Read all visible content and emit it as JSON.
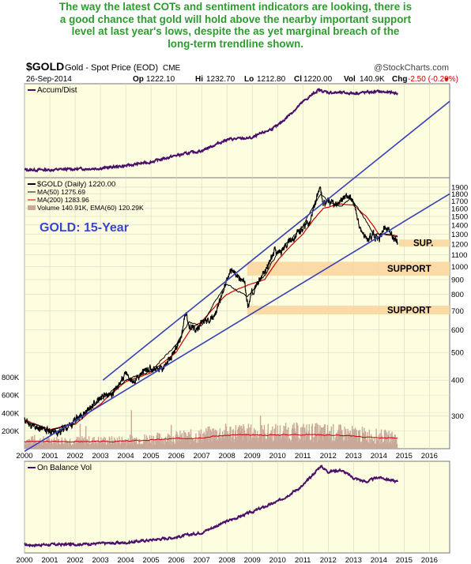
{
  "headline": [
    "The way the latest COTs and sentiment indicators are looking, there is",
    "a good chance that gold will hold above the nearby important support",
    "level at last year's lows, despite the as yet marginal breach of the",
    "long-term trendline shown."
  ],
  "header": {
    "symbol": "$GOLD",
    "name": "Gold - Spot Price (EOD)",
    "exchange": "CME",
    "date": "26-Sep-2014",
    "copyright": "@StockCharts.com",
    "quote": [
      {
        "label": "Op",
        "value": "1222.10"
      },
      {
        "label": "Hi",
        "value": "1232.70"
      },
      {
        "label": "Lo",
        "value": "1212.80"
      },
      {
        "label": "Cl",
        "value": "1220.00"
      },
      {
        "label": "Vol",
        "value": "140.9K"
      },
      {
        "label": "Chg",
        "value": "-2.50 (-0.20%)"
      }
    ]
  },
  "colors": {
    "background": "#fdfde0",
    "price": "#000000",
    "ma50": "#000000",
    "ma200": "#cc0000",
    "indicator": "#4b0f6b",
    "trendline": "#3840b8",
    "support_band": "#fad7a0",
    "volume": "#c9a89a",
    "volume_ema": "#cc0000",
    "headline": "#2e9b2e",
    "annotation": "#3c46c8"
  },
  "annotation_title": "GOLD: 15-Year",
  "chart_data": [
    {
      "type": "line",
      "title": "Accum/Dist",
      "x": [
        2000,
        2001,
        2002,
        2003,
        2004,
        2005,
        2006,
        2007,
        2008,
        2009,
        2010,
        2011,
        2011.6,
        2012,
        2013,
        2014,
        2014.74
      ],
      "values": [
        0,
        0,
        0.01,
        0.02,
        0.05,
        0.1,
        0.18,
        0.24,
        0.38,
        0.4,
        0.55,
        0.85,
        1,
        0.97,
        0.96,
        0.98,
        0.96
      ]
    },
    {
      "type": "line",
      "title": "$GOLD (Daily) 1220.00",
      "xlim": [
        2000,
        2016.8
      ],
      "ylim": [
        230,
        2050
      ],
      "yscale": "log",
      "yticks": [
        300,
        400,
        500,
        600,
        700,
        800,
        900,
        1000,
        1100,
        1200,
        1300,
        1400,
        1500,
        1600,
        1700,
        1800,
        1900
      ],
      "xticks": [
        "2000",
        "2001",
        "2002",
        "2003",
        "2004",
        "2005",
        "2006",
        "2007",
        "2008",
        "2009",
        "2010",
        "2011",
        "2012",
        "2013",
        "2014",
        "2015",
        "2016"
      ],
      "vol_ticks": [
        "200K",
        "400K",
        "600K",
        "800K"
      ],
      "legend": [
        "$GOLD (Daily) 1220.00",
        "MA(50) 1275.69",
        "MA(200) 1283.96",
        "Volume 140.91K, EMA(60) 120.29K"
      ],
      "price": {
        "x": [
          2000,
          2000.3,
          2000.7,
          2001,
          2001.3,
          2001.8,
          2002,
          2002.5,
          2003,
          2003.5,
          2004,
          2004.3,
          2004.7,
          2005,
          2005.5,
          2005.9,
          2006.2,
          2006.37,
          2006.5,
          2006.8,
          2007,
          2007.5,
          2007.8,
          2008.0,
          2008.2,
          2008.5,
          2008.7,
          2008.83,
          2009,
          2009.3,
          2009.5,
          2009.9,
          2010,
          2010.5,
          2011,
          2011.3,
          2011.67,
          2011.8,
          2012,
          2012.3,
          2012.7,
          2013,
          2013.25,
          2013.5,
          2013.8,
          2014,
          2014.2,
          2014.5,
          2014.74
        ],
        "values": [
          290,
          275,
          270,
          265,
          262,
          278,
          290,
          315,
          345,
          360,
          420,
          390,
          430,
          440,
          440,
          500,
          560,
          700,
          620,
          600,
          640,
          660,
          800,
          900,
          980,
          900,
          880,
          720,
          820,
          900,
          950,
          1150,
          1110,
          1230,
          1370,
          1440,
          1890,
          1650,
          1700,
          1650,
          1780,
          1680,
          1350,
          1250,
          1300,
          1230,
          1380,
          1300,
          1220
        ]
      },
      "ma50": {
        "x": [
          2000,
          2001,
          2002,
          2003,
          2004,
          2005,
          2006,
          2006.5,
          2007,
          2008,
          2008.8,
          2009.5,
          2010,
          2011,
          2011.7,
          2012,
          2012.5,
          2012.9,
          2013.3,
          2013.8,
          2014.3,
          2014.74
        ],
        "values": [
          288,
          266,
          285,
          340,
          400,
          430,
          530,
          640,
          620,
          870,
          780,
          930,
          1110,
          1380,
          1800,
          1690,
          1620,
          1740,
          1540,
          1300,
          1300,
          1275.69
        ]
      },
      "ma200": {
        "x": [
          2000,
          2001,
          2002,
          2003,
          2004,
          2005,
          2006,
          2006.6,
          2007,
          2008,
          2008.8,
          2009.5,
          2010,
          2011,
          2011.8,
          2012.5,
          2013,
          2013.5,
          2014,
          2014.74
        ],
        "values": [
          290,
          268,
          280,
          330,
          395,
          425,
          500,
          610,
          640,
          800,
          860,
          900,
          1050,
          1300,
          1600,
          1660,
          1640,
          1500,
          1300,
          1283.96
        ]
      },
      "trendlines": [
        {
          "x": [
            2003.1,
            2016.8
          ],
          "y": [
            400,
            3800
          ]
        },
        {
          "x": [
            2000,
            2016.8
          ],
          "y": [
            225,
            1800
          ]
        }
      ],
      "support_bands": [
        {
          "from": 1175,
          "to": 1245,
          "label": "SUP."
        },
        {
          "from": 930,
          "to": 1040,
          "label": "SUPPORT"
        },
        {
          "from": 680,
          "to": 730,
          "label": "SUPPORT"
        }
      ],
      "volume": {
        "x": [
          2000,
          2003.5,
          2004.5,
          2005.5,
          2006.5,
          2007,
          2007.5,
          2008,
          2008.5,
          2009,
          2010,
          2011,
          2012,
          2013,
          2014,
          2014.74
        ],
        "values": [
          80,
          80,
          95,
          105,
          120,
          130,
          150,
          160,
          165,
          155,
          160,
          165,
          160,
          145,
          125,
          110
        ],
        "ema": [
          80,
          80,
          90,
          105,
          120,
          125,
          140,
          150,
          155,
          150,
          155,
          160,
          155,
          140,
          122,
          120.29
        ]
      }
    },
    {
      "type": "line",
      "title": "On Balance Vol",
      "x": [
        2000,
        2002,
        2004,
        2006,
        2007,
        2008,
        2009,
        2010,
        2011,
        2011.7,
        2012,
        2012.5,
        2013,
        2013.5,
        2014,
        2014.74
      ],
      "values": [
        0,
        0.01,
        0.03,
        0.1,
        0.16,
        0.3,
        0.42,
        0.55,
        0.75,
        1,
        0.93,
        0.95,
        0.85,
        0.8,
        0.86,
        0.8
      ]
    }
  ]
}
